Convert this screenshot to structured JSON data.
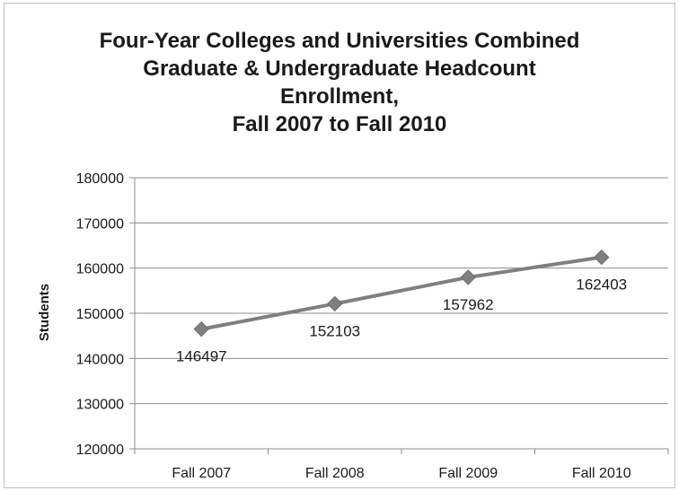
{
  "chart_data": {
    "type": "line",
    "title_lines": [
      "Four-Year Colleges and Universities Combined",
      "Graduate & Undergraduate Headcount",
      "Enrollment,",
      "Fall 2007 to Fall 2010"
    ],
    "xlabel": "",
    "ylabel": "Students",
    "categories": [
      "Fall 2007",
      "Fall 2008",
      "Fall 2009",
      "Fall 2010"
    ],
    "series": [
      {
        "values": [
          146497,
          152103,
          157962,
          162403
        ],
        "color": "#7f7f7f"
      }
    ],
    "data_labels": [
      "146497",
      "152103",
      "157962",
      "162403"
    ],
    "ylim": [
      120000,
      180000
    ],
    "yticks": [
      120000,
      130000,
      140000,
      150000,
      160000,
      170000,
      180000
    ],
    "ytick_labels": [
      "120000",
      "130000",
      "140000",
      "150000",
      "160000",
      "170000",
      "180000"
    ],
    "grid": true,
    "legend": "none",
    "marker": "diamond"
  }
}
